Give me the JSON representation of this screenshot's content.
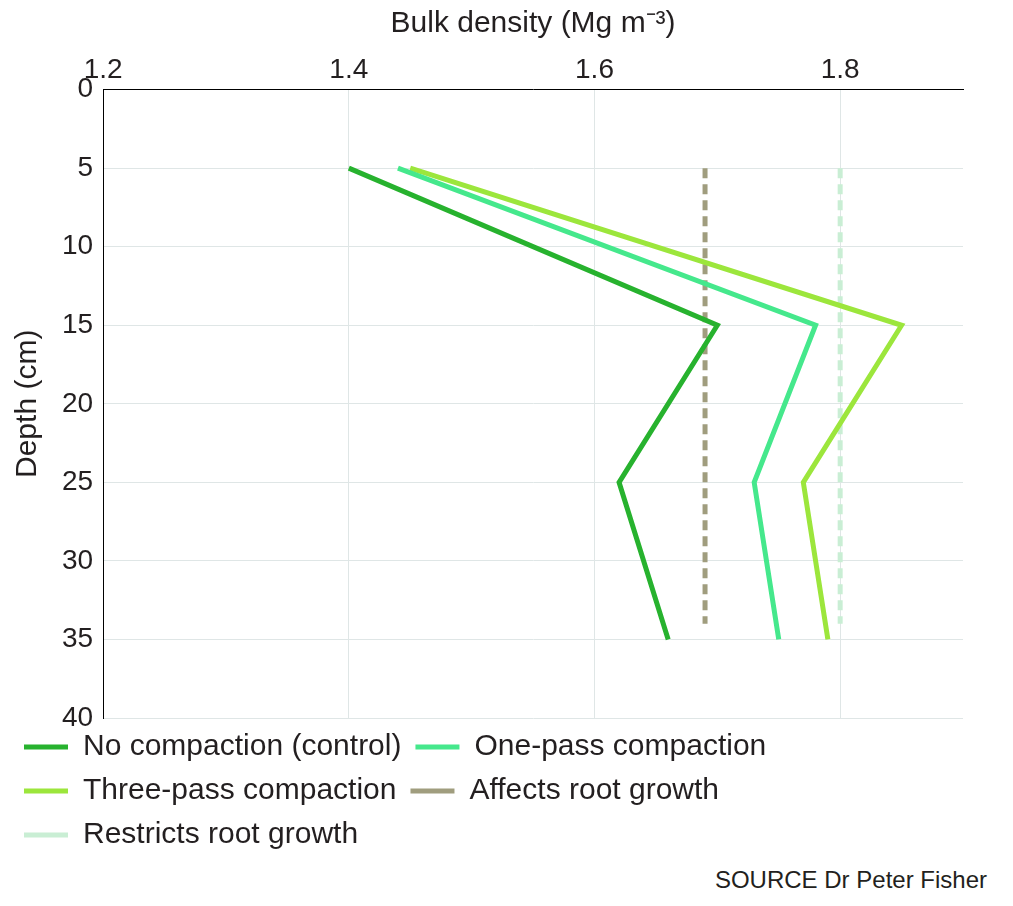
{
  "chart_data": {
    "type": "line",
    "x_label": "Bulk density (Mg m⁻³)",
    "y_label": "Depth (cm)",
    "xlim": [
      1.2,
      1.9
    ],
    "xticks": [
      1.2,
      1.4,
      1.6,
      1.8
    ],
    "ylim": [
      0,
      40
    ],
    "yticks": [
      0,
      5,
      10,
      15,
      20,
      25,
      30,
      35,
      40
    ],
    "grid": true,
    "legend": "bottom",
    "marker": "none",
    "series": [
      {
        "name": "No compaction (control)",
        "color": "#27b22e",
        "line_style": "solid",
        "x": [
          1.4,
          1.7,
          1.62,
          1.66
        ],
        "y": [
          5,
          15,
          25,
          35
        ]
      },
      {
        "name": "One-pass compaction",
        "color": "#45e88c",
        "line_style": "solid",
        "x": [
          1.44,
          1.78,
          1.73,
          1.75
        ],
        "y": [
          5,
          15,
          25,
          35
        ]
      },
      {
        "name": "Three-pass compaction",
        "color": "#9ce63c",
        "line_style": "solid",
        "x": [
          1.45,
          1.85,
          1.77,
          1.79
        ],
        "y": [
          5,
          15,
          25,
          35
        ]
      },
      {
        "name": "Affects root growth",
        "color": "#a09d7e",
        "line_style": "dashed",
        "x": [
          1.69,
          1.69
        ],
        "y": [
          5,
          34
        ]
      },
      {
        "name": "Restricts root growth",
        "color": "#c9eed4",
        "line_style": "dashed",
        "x": [
          1.8,
          1.8
        ],
        "y": [
          5,
          34
        ]
      }
    ],
    "annotations": [
      "SOURCE Dr Peter Fisher"
    ]
  }
}
